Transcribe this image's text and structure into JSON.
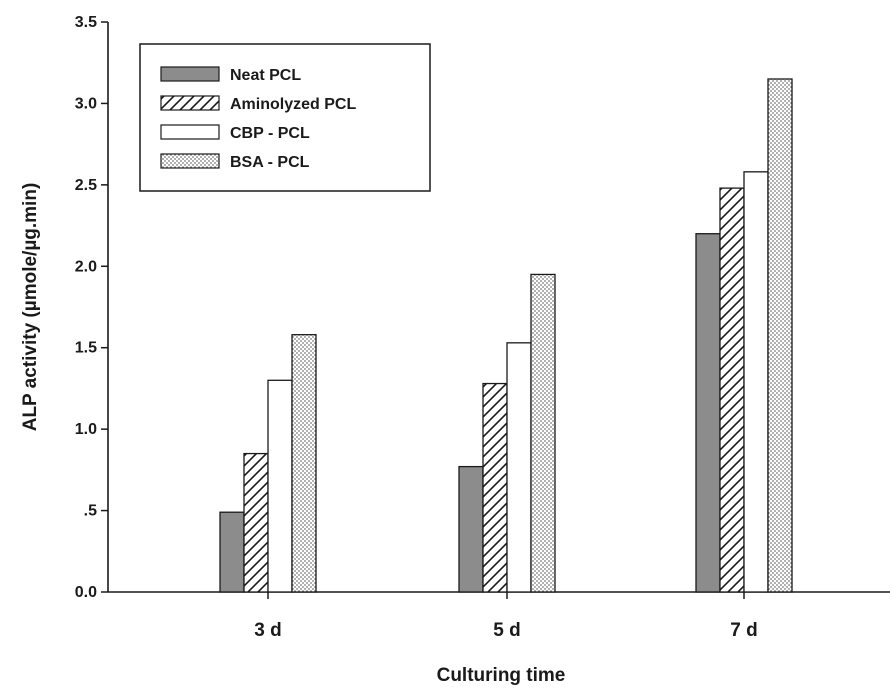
{
  "chart_data": {
    "type": "bar",
    "title": "",
    "xlabel": "Culturing time",
    "ylabel": "ALP activity (µmole/µg.min)",
    "ylim": [
      0,
      3.5
    ],
    "yticks": [
      0,
      0.5,
      1.0,
      1.5,
      2.0,
      2.5,
      3.0,
      3.5
    ],
    "ytick_labels": [
      "0.0",
      ".5",
      "1.0",
      "1.5",
      "2.0",
      "2.5",
      "3.0",
      "3.5"
    ],
    "categories": [
      "3 d",
      "5 d",
      "7 d"
    ],
    "series": [
      {
        "name": "Neat PCL",
        "values": [
          0.49,
          0.77,
          2.2
        ],
        "fill": "gray"
      },
      {
        "name": "Aminolyzed PCL",
        "values": [
          0.85,
          1.28,
          2.48
        ],
        "fill": "diagonal-hatch"
      },
      {
        "name": "CBP - PCL",
        "values": [
          1.3,
          1.53,
          2.58
        ],
        "fill": "white"
      },
      {
        "name": "BSA - PCL",
        "values": [
          1.58,
          1.95,
          3.15
        ],
        "fill": "dotted"
      }
    ],
    "grid": false,
    "legend_position": "top-left",
    "colors": {
      "gray": "#8c8c8c",
      "ink": "#1a1a1a",
      "dots": "#9a9a9a"
    }
  }
}
